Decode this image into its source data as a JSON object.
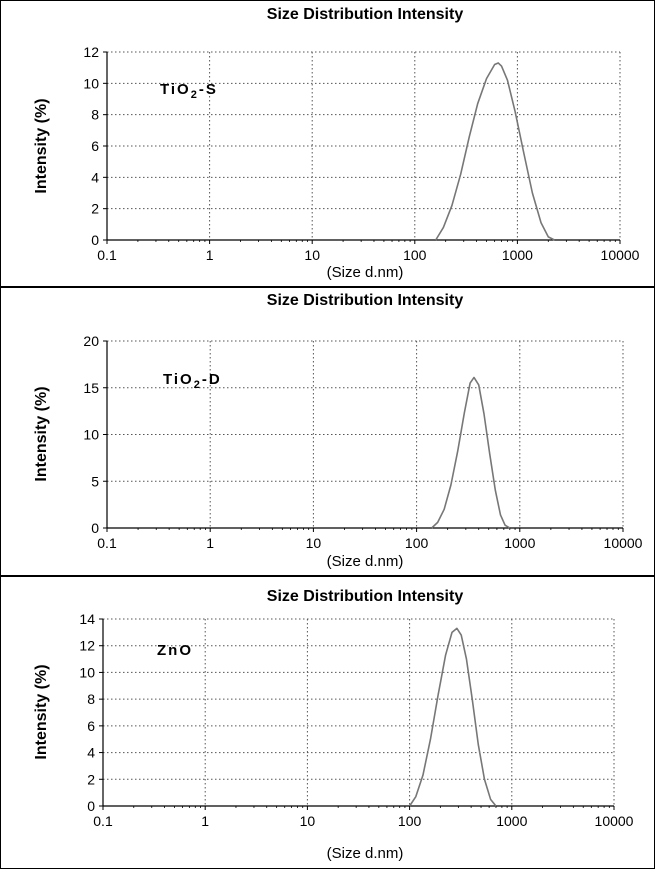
{
  "chart_data": [
    {
      "type": "line",
      "title": "Size Distribution Intensity",
      "xlabel": "(Size d.nm)",
      "ylabel": "Intensity (%)",
      "x_scale": "log",
      "xlim": [
        0.1,
        10000
      ],
      "ylim": [
        0,
        12
      ],
      "x_ticks": [
        "0.1",
        "1",
        "10",
        "100",
        "1000",
        "10000"
      ],
      "y_ticks": [
        "0",
        "2",
        "4",
        "6",
        "8",
        "10",
        "12"
      ],
      "grid": true,
      "annotation": {
        "main": "TiO",
        "sub": "2",
        "suffix": "-S"
      },
      "series": [
        {
          "x": [
            160,
            190,
            230,
            280,
            340,
            410,
            500,
            600,
            650,
            700,
            800,
            950,
            1150,
            1400,
            1700,
            2000,
            2300
          ],
          "y": [
            0,
            0.8,
            2.2,
            4.2,
            6.6,
            8.7,
            10.3,
            11.2,
            11.3,
            11.1,
            10.2,
            8.2,
            5.6,
            3.0,
            1.1,
            0.2,
            0
          ]
        }
      ]
    },
    {
      "type": "line",
      "title": "Size Distribution Intensity",
      "xlabel": "(Size d.nm)",
      "ylabel": "Intensity (%)",
      "x_scale": "log",
      "xlim": [
        0.1,
        10000
      ],
      "ylim": [
        0,
        20
      ],
      "x_ticks": [
        "0.1",
        "1",
        "10",
        "100",
        "1000",
        "10000"
      ],
      "y_ticks": [
        "0",
        "5",
        "10",
        "15",
        "20"
      ],
      "grid": true,
      "annotation": {
        "main": "TiO",
        "sub": "2",
        "suffix": "-D"
      },
      "series": [
        {
          "x": [
            140,
            160,
            185,
            215,
            250,
            290,
            330,
            360,
            400,
            450,
            510,
            580,
            650,
            720,
            800
          ],
          "y": [
            0,
            0.6,
            2.0,
            4.6,
            8.2,
            12.3,
            15.5,
            16.1,
            15.3,
            12.2,
            8.0,
            4.0,
            1.4,
            0.3,
            0
          ]
        }
      ]
    },
    {
      "type": "line",
      "title": "Size Distribution Intensity",
      "xlabel": "(Size d.nm)",
      "ylabel": "Intensity (%)",
      "x_scale": "log",
      "xlim": [
        0.1,
        10000
      ],
      "ylim": [
        0,
        14
      ],
      "x_ticks": [
        "0.1",
        "1",
        "10",
        "100",
        "1000",
        "10000"
      ],
      "y_ticks": [
        "0",
        "2",
        "4",
        "6",
        "8",
        "10",
        "12",
        "14"
      ],
      "grid": true,
      "annotation": {
        "main": "ZnO",
        "sub": "",
        "suffix": ""
      },
      "series": [
        {
          "x": [
            100,
            115,
            135,
            160,
            190,
            225,
            260,
            290,
            320,
            360,
            410,
            470,
            540,
            620,
            700
          ],
          "y": [
            0,
            0.7,
            2.3,
            5.0,
            8.3,
            11.3,
            13.0,
            13.3,
            12.8,
            11.0,
            8.0,
            4.6,
            2.0,
            0.5,
            0
          ]
        }
      ]
    }
  ]
}
